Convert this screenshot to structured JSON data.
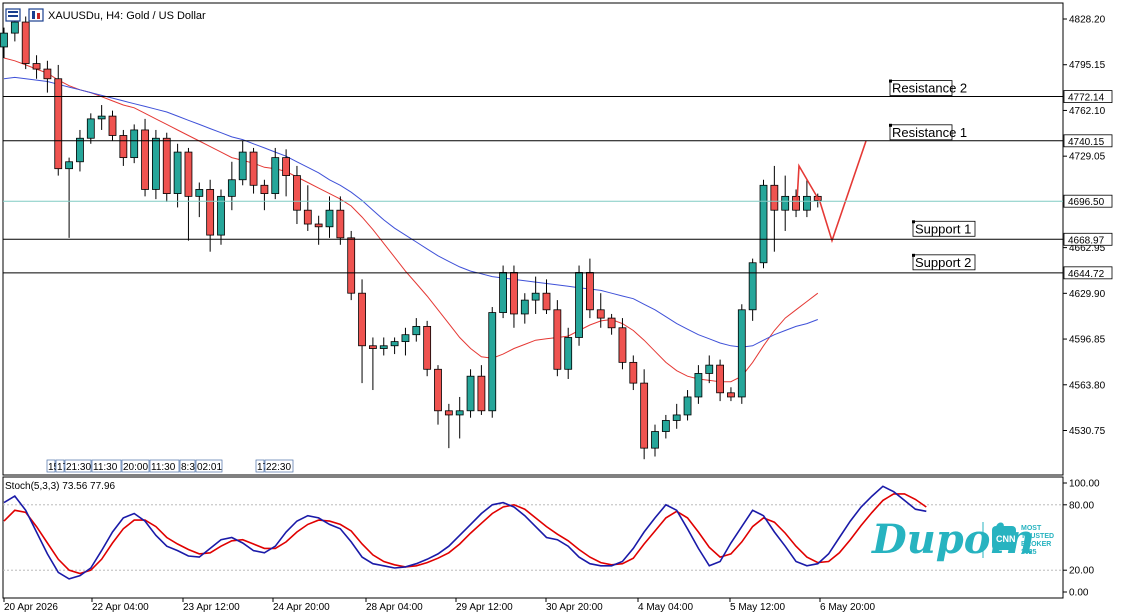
{
  "header": {
    "symbol": "XAUUSDu",
    "timeframe": "H4",
    "title_text": "XAUUSDu, H4:  Gold / US Dollar"
  },
  "colors": {
    "bull": "#26a69a",
    "bear": "#ef5350",
    "ma_fast": "#e53935",
    "ma_slow": "#3f51d8",
    "current_price_line": "#80cbc4",
    "level_line": "#000000",
    "projection": "#e53935",
    "stoch_main": "#1a1aa8",
    "stoch_signal": "#e00000",
    "brand": "#27b3c0"
  },
  "levels": [
    {
      "name": "Resistance 2",
      "price": 4772.14,
      "label": "4772.14"
    },
    {
      "name": "Resistance 1",
      "price": 4740.15,
      "label": "4740.15"
    },
    {
      "name": "Support 1",
      "price": 4668.97,
      "label": "4668.97"
    },
    {
      "name": "Support 2",
      "price": 4644.72,
      "label": "4644.72"
    }
  ],
  "current_price": {
    "price": 4696.5,
    "label": "4696.50"
  },
  "event_markers": [
    "15",
    "17",
    "21:30",
    "11:30",
    "20:00",
    "11:30",
    "8:3",
    "02:01",
    "17",
    "22:30"
  ],
  "stochastic": {
    "title": "Stoch(5,3,3) 73.56 77.96",
    "axis_labels": [
      "100.00",
      "80.00",
      "20.00",
      "0.00"
    ],
    "main": [
      82,
      88,
      75,
      55,
      35,
      18,
      12,
      15,
      22,
      38,
      55,
      68,
      72,
      65,
      52,
      42,
      38,
      33,
      32,
      40,
      48,
      50,
      45,
      38,
      36,
      42,
      55,
      65,
      70,
      68,
      62,
      58,
      46,
      32,
      26,
      24,
      22,
      23,
      26,
      30,
      35,
      42,
      52,
      62,
      72,
      80,
      82,
      78,
      70,
      60,
      50,
      48,
      42,
      32,
      26,
      24,
      24,
      28,
      40,
      55,
      68,
      80,
      75,
      58,
      40,
      24,
      28,
      45,
      60,
      75,
      70,
      55,
      42,
      28,
      24,
      26,
      35,
      50,
      65,
      78,
      88,
      97,
      92,
      84,
      76,
      74
    ],
    "signal": [
      65,
      75,
      73,
      60,
      45,
      30,
      20,
      17,
      20,
      30,
      45,
      58,
      66,
      66,
      60,
      50,
      44,
      39,
      35,
      36,
      42,
      47,
      48,
      44,
      40,
      40,
      46,
      55,
      62,
      66,
      65,
      62,
      56,
      44,
      34,
      28,
      25,
      23,
      24,
      27,
      31,
      36,
      44,
      54,
      63,
      72,
      78,
      80,
      76,
      68,
      60,
      53,
      47,
      39,
      32,
      27,
      25,
      26,
      31,
      44,
      56,
      68,
      74,
      68,
      55,
      41,
      32,
      35,
      46,
      60,
      68,
      64,
      54,
      42,
      32,
      27,
      28,
      36,
      48,
      61,
      73,
      84,
      90,
      90,
      85,
      78
    ]
  },
  "chart_data": {
    "type": "candlestick",
    "title": "XAUUSDu, H4:  Gold / US Dollar",
    "y_axis": {
      "ticks": [
        "4828.20",
        "4795.15",
        "4762.10",
        "4729.05",
        "4662.95",
        "4629.90",
        "4596.85",
        "4563.80",
        "4530.75"
      ],
      "range": [
        4505,
        4840
      ]
    },
    "x_axis": {
      "ticks": [
        "20 Apr 2026",
        "22 Apr 04:00",
        "23 Apr 12:00",
        "24 Apr 20:00",
        "28 Apr 04:00",
        "29 Apr 12:00",
        "30 Apr 20:00",
        "4 May 04:00",
        "5 May 12:00",
        "6 May 20:00"
      ]
    },
    "candles": [
      [
        4808,
        4822,
        4800,
        4818
      ],
      [
        4818,
        4830,
        4812,
        4826
      ],
      [
        4826,
        4830,
        4792,
        4796
      ],
      [
        4796,
        4802,
        4785,
        4792
      ],
      [
        4792,
        4798,
        4775,
        4785
      ],
      [
        4785,
        4795,
        4715,
        4720
      ],
      [
        4720,
        4728,
        4670,
        4725
      ],
      [
        4725,
        4748,
        4718,
        4742
      ],
      [
        4742,
        4760,
        4738,
        4756
      ],
      [
        4756,
        4766,
        4748,
        4758
      ],
      [
        4758,
        4762,
        4740,
        4744
      ],
      [
        4744,
        4748,
        4722,
        4728
      ],
      [
        4728,
        4752,
        4724,
        4748
      ],
      [
        4748,
        4756,
        4700,
        4705
      ],
      [
        4705,
        4748,
        4698,
        4742
      ],
      [
        4742,
        4746,
        4696,
        4702
      ],
      [
        4702,
        4738,
        4692,
        4732
      ],
      [
        4732,
        4735,
        4668,
        4700
      ],
      [
        4700,
        4710,
        4685,
        4705
      ],
      [
        4705,
        4712,
        4660,
        4672
      ],
      [
        4672,
        4705,
        4665,
        4700
      ],
      [
        4700,
        4725,
        4690,
        4712
      ],
      [
        4712,
        4740,
        4708,
        4732
      ],
      [
        4732,
        4735,
        4702,
        4708
      ],
      [
        4708,
        4712,
        4690,
        4702
      ],
      [
        4702,
        4735,
        4698,
        4728
      ],
      [
        4728,
        4734,
        4700,
        4715
      ],
      [
        4715,
        4722,
        4680,
        4690
      ],
      [
        4690,
        4708,
        4675,
        4680
      ],
      [
        4680,
        4686,
        4665,
        4678
      ],
      [
        4678,
        4700,
        4670,
        4690
      ],
      [
        4690,
        4700,
        4665,
        4670
      ],
      [
        4670,
        4675,
        4625,
        4630
      ],
      [
        4630,
        4640,
        4565,
        4592
      ],
      [
        4592,
        4598,
        4560,
        4590
      ],
      [
        4590,
        4598,
        4585,
        4592
      ],
      [
        4592,
        4598,
        4586,
        4595
      ],
      [
        4595,
        4605,
        4585,
        4600
      ],
      [
        4600,
        4612,
        4595,
        4606
      ],
      [
        4606,
        4610,
        4570,
        4575
      ],
      [
        4575,
        4578,
        4535,
        4545
      ],
      [
        4545,
        4550,
        4518,
        4542
      ],
      [
        4542,
        4555,
        4525,
        4545
      ],
      [
        4545,
        4575,
        4540,
        4570
      ],
      [
        4570,
        4578,
        4542,
        4545
      ],
      [
        4545,
        4620,
        4540,
        4616
      ],
      [
        4616,
        4650,
        4612,
        4645
      ],
      [
        4645,
        4650,
        4605,
        4615
      ],
      [
        4615,
        4630,
        4608,
        4625
      ],
      [
        4625,
        4642,
        4615,
        4630
      ],
      [
        4630,
        4640,
        4615,
        4618
      ],
      [
        4618,
        4625,
        4570,
        4575
      ],
      [
        4575,
        4605,
        4568,
        4598
      ],
      [
        4598,
        4650,
        4592,
        4645
      ],
      [
        4645,
        4655,
        4612,
        4618
      ],
      [
        4618,
        4630,
        4605,
        4612
      ],
      [
        4612,
        4615,
        4600,
        4605
      ],
      [
        4605,
        4612,
        4575,
        4580
      ],
      [
        4580,
        4585,
        4560,
        4565
      ],
      [
        4565,
        4575,
        4510,
        4518
      ],
      [
        4518,
        4535,
        4512,
        4530
      ],
      [
        4530,
        4542,
        4525,
        4538
      ],
      [
        4538,
        4550,
        4532,
        4542
      ],
      [
        4542,
        4560,
        4538,
        4555
      ],
      [
        4555,
        4578,
        4550,
        4572
      ],
      [
        4572,
        4585,
        4565,
        4578
      ],
      [
        4578,
        4582,
        4552,
        4558
      ],
      [
        4558,
        4562,
        4552,
        4555
      ],
      [
        4555,
        4622,
        4550,
        4618
      ],
      [
        4618,
        4655,
        4610,
        4652
      ],
      [
        4652,
        4712,
        4648,
        4708
      ],
      [
        4708,
        4722,
        4660,
        4690
      ],
      [
        4690,
        4715,
        4675,
        4700
      ],
      [
        4700,
        4705,
        4685,
        4690
      ],
      [
        4690,
        4712,
        4685,
        4700
      ],
      [
        4700,
        4702,
        4692,
        4697
      ]
    ],
    "series": [
      {
        "values": [
          4800,
          4798,
          4795,
          4792,
          4789,
          4784,
          4780,
          4777,
          4775,
          4772,
          4769,
          4766,
          4764,
          4760,
          4756,
          4752,
          4748,
          4744,
          4740,
          4736,
          4732,
          4728,
          4726,
          4724,
          4721,
          4720,
          4718,
          4714,
          4710,
          4706,
          4702,
          4698,
          4693,
          4685,
          4676,
          4666,
          4656,
          4646,
          4637,
          4628,
          4618,
          4608,
          4598,
          4590,
          4584,
          4583,
          4586,
          4590,
          4593,
          4596,
          4597,
          4598,
          4599,
          4603,
          4607,
          4610,
          4611,
          4608,
          4603,
          4596,
          4588,
          4580,
          4574,
          4570,
          4568,
          4567,
          4566,
          4566,
          4570,
          4580,
          4592,
          4603,
          4612,
          4618,
          4624,
          4630
        ]
      },
      {
        "values": [
          4785,
          4786,
          4785,
          4784,
          4783,
          4781,
          4779,
          4777,
          4775,
          4773,
          4771,
          4769,
          4767,
          4765,
          4763,
          4761,
          4758,
          4755,
          4752,
          4749,
          4746,
          4743,
          4741,
          4738,
          4735,
          4732,
          4729,
          4725,
          4721,
          4717,
          4712,
          4708,
          4703,
          4697,
          4690,
          4683,
          4677,
          4672,
          4667,
          4662,
          4657,
          4653,
          4649,
          4646,
          4644,
          4642,
          4641,
          4640,
          4639,
          4638,
          4637,
          4636,
          4635,
          4634,
          4633,
          4632,
          4630,
          4628,
          4626,
          4622,
          4618,
          4613,
          4608,
          4604,
          4600,
          4597,
          4594,
          4592,
          4591,
          4592,
          4596,
          4600,
          4603,
          4606,
          4608,
          4611
        ]
      }
    ]
  }
}
